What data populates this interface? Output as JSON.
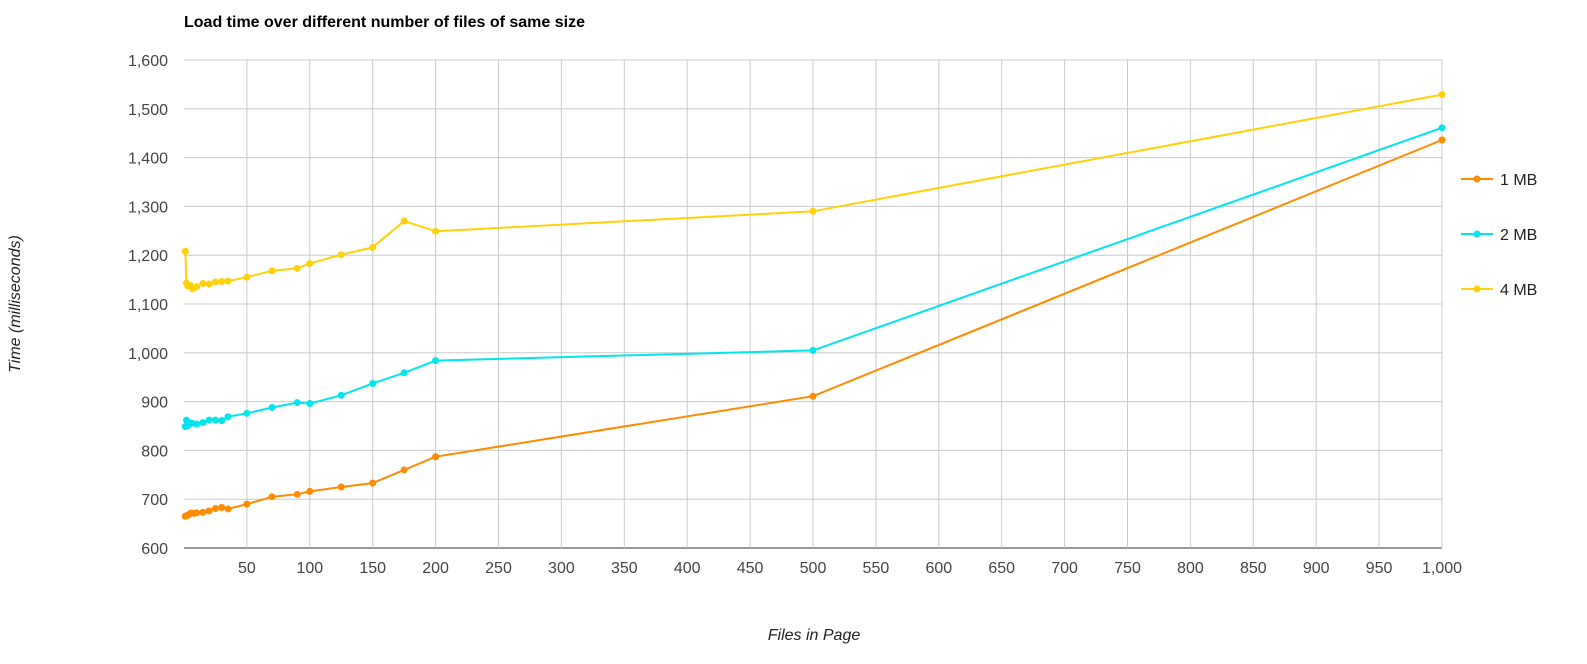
{
  "chart_data": {
    "type": "line",
    "title": "Load time over different number of files of same size",
    "xlabel": "Files in Page",
    "ylabel": "Time (milliseconds)",
    "xlim": [
      0,
      1000
    ],
    "ylim": [
      600,
      1600
    ],
    "x_ticks": [
      "50",
      "100",
      "150",
      "200",
      "250",
      "300",
      "350",
      "400",
      "450",
      "500",
      "550",
      "600",
      "650",
      "700",
      "750",
      "800",
      "850",
      "900",
      "950",
      "1,000"
    ],
    "y_ticks": [
      "600",
      "700",
      "800",
      "900",
      "1,000",
      "1,100",
      "1,200",
      "1,300",
      "1,400",
      "1,500",
      "1,600"
    ],
    "grid": true,
    "legend_position": "right",
    "series": [
      {
        "name": "1 MB",
        "color": "#ff8c00",
        "points": [
          [
            1,
            665
          ],
          [
            2,
            666
          ],
          [
            3,
            667
          ],
          [
            4,
            669
          ],
          [
            5,
            671
          ],
          [
            6,
            672
          ],
          [
            8,
            671
          ],
          [
            10,
            672
          ],
          [
            15,
            673
          ],
          [
            20,
            676
          ],
          [
            25,
            681
          ],
          [
            30,
            683
          ],
          [
            35,
            680
          ],
          [
            50,
            690
          ],
          [
            70,
            705
          ],
          [
            90,
            710
          ],
          [
            100,
            716
          ],
          [
            125,
            725
          ],
          [
            150,
            733
          ],
          [
            175,
            760
          ],
          [
            200,
            787
          ],
          [
            500,
            911
          ],
          [
            1000,
            1436
          ]
        ]
      },
      {
        "name": "2 MB",
        "color": "#00e5ee",
        "points": [
          [
            1,
            849
          ],
          [
            2,
            862
          ],
          [
            3,
            851
          ],
          [
            4,
            853
          ],
          [
            6,
            856
          ],
          [
            10,
            854
          ],
          [
            15,
            857
          ],
          [
            20,
            862
          ],
          [
            25,
            862
          ],
          [
            30,
            861
          ],
          [
            35,
            869
          ],
          [
            50,
            876
          ],
          [
            70,
            888
          ],
          [
            90,
            898
          ],
          [
            100,
            896
          ],
          [
            125,
            913
          ],
          [
            150,
            937
          ],
          [
            175,
            959
          ],
          [
            200,
            984
          ],
          [
            500,
            1005
          ],
          [
            1000,
            1461
          ]
        ]
      },
      {
        "name": "4 MB",
        "color": "#ffd10a",
        "points": [
          [
            1,
            1208
          ],
          [
            2,
            1143
          ],
          [
            3,
            1137
          ],
          [
            5,
            1138
          ],
          [
            7,
            1131
          ],
          [
            10,
            1135
          ],
          [
            15,
            1142
          ],
          [
            20,
            1141
          ],
          [
            25,
            1145
          ],
          [
            30,
            1146
          ],
          [
            35,
            1147
          ],
          [
            50,
            1155
          ],
          [
            70,
            1168
          ],
          [
            90,
            1173
          ],
          [
            100,
            1183
          ],
          [
            125,
            1201
          ],
          [
            150,
            1216
          ],
          [
            175,
            1270
          ],
          [
            200,
            1249
          ],
          [
            500,
            1290
          ],
          [
            1000,
            1529
          ]
        ]
      }
    ]
  }
}
